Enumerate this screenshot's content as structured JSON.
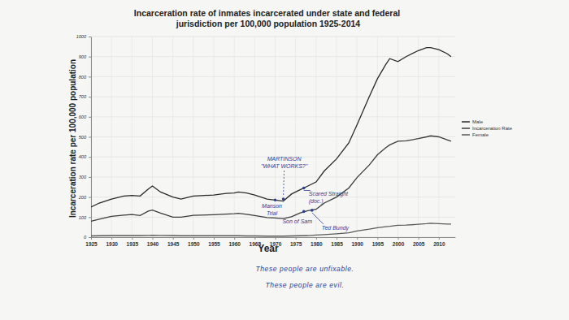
{
  "chart_data": {
    "type": "line",
    "title": "Incarceration rate of inmates incarcerated under state and federal jurisdiction per 100,000 population 1925-2014",
    "x_label": "Year",
    "y_label": "Incarceration rate per 100,000 population",
    "x": [
      1925,
      1927,
      1930,
      1933,
      1935,
      1937,
      1939,
      1940,
      1942,
      1945,
      1947,
      1950,
      1955,
      1958,
      1960,
      1961,
      1963,
      1965,
      1968,
      1970,
      1972,
      1974,
      1976,
      1978,
      1980,
      1982,
      1985,
      1988,
      1990,
      1993,
      1995,
      1997,
      1998,
      2000,
      2002,
      2005,
      2007,
      2008,
      2010,
      2012,
      2013
    ],
    "series": [
      {
        "name": "Male",
        "color": "#2a2a2a",
        "values": [
          150,
          170,
          190,
          205,
          208,
          205,
          240,
          255,
          225,
          200,
          190,
          205,
          210,
          218,
          220,
          225,
          220,
          210,
          190,
          185,
          180,
          215,
          235,
          255,
          275,
          330,
          390,
          470,
          560,
          700,
          790,
          860,
          890,
          875,
          900,
          930,
          945,
          945,
          935,
          915,
          900
        ]
      },
      {
        "name": "Incarceration Rate",
        "color": "#3c3c3c",
        "values": [
          79,
          90,
          104,
          110,
          113,
          108,
          130,
          135,
          120,
          100,
          100,
          109,
          112,
          115,
          117,
          119,
          114,
          108,
          98,
          96,
          93,
          102,
          120,
          132,
          139,
          170,
          200,
          245,
          297,
          360,
          411,
          445,
          460,
          478,
          480,
          491,
          500,
          505,
          500,
          485,
          478
        ]
      },
      {
        "name": "Female",
        "color": "#5a5a5a",
        "values": [
          6,
          7,
          8,
          8,
          8,
          8,
          9,
          10,
          9,
          8,
          7,
          7,
          7,
          7,
          7,
          7,
          6,
          6,
          5,
          5,
          5,
          6,
          7,
          8,
          11,
          13,
          17,
          22,
          31,
          40,
          47,
          52,
          54,
          59,
          60,
          64,
          67,
          69,
          67,
          65,
          65
        ]
      }
    ],
    "xlim": [
      1925,
      2014
    ],
    "xticks": [
      1925,
      1930,
      1935,
      1940,
      1945,
      1950,
      1955,
      1960,
      1965,
      1970,
      1975,
      1980,
      1985,
      1990,
      1995,
      2000,
      2005,
      2010
    ],
    "ylim": [
      0,
      1000
    ],
    "yticks": [
      0,
      100,
      200,
      300,
      400,
      500,
      600,
      700,
      800,
      900,
      1000
    ],
    "grid": true,
    "legend": "right",
    "annotations": [
      {
        "text": [
          "MARTINSON",
          "\"WHAT WORKS?\""
        ],
        "x": 1972,
        "y": 190
      },
      {
        "text": [
          "Manson",
          "Trial"
        ],
        "x": 1970,
        "y": 185
      },
      {
        "text": [
          "Scared Straight",
          "(doc.)"
        ],
        "x": 1977,
        "y": 245
      },
      {
        "text": [
          "Son of Sam"
        ],
        "x": 1977,
        "y": 128
      },
      {
        "text": [
          "Ted Bundy"
        ],
        "x": 1979,
        "y": 134
      }
    ],
    "notes": [
      "These people are unfixable.",
      "These people are evil."
    ]
  }
}
